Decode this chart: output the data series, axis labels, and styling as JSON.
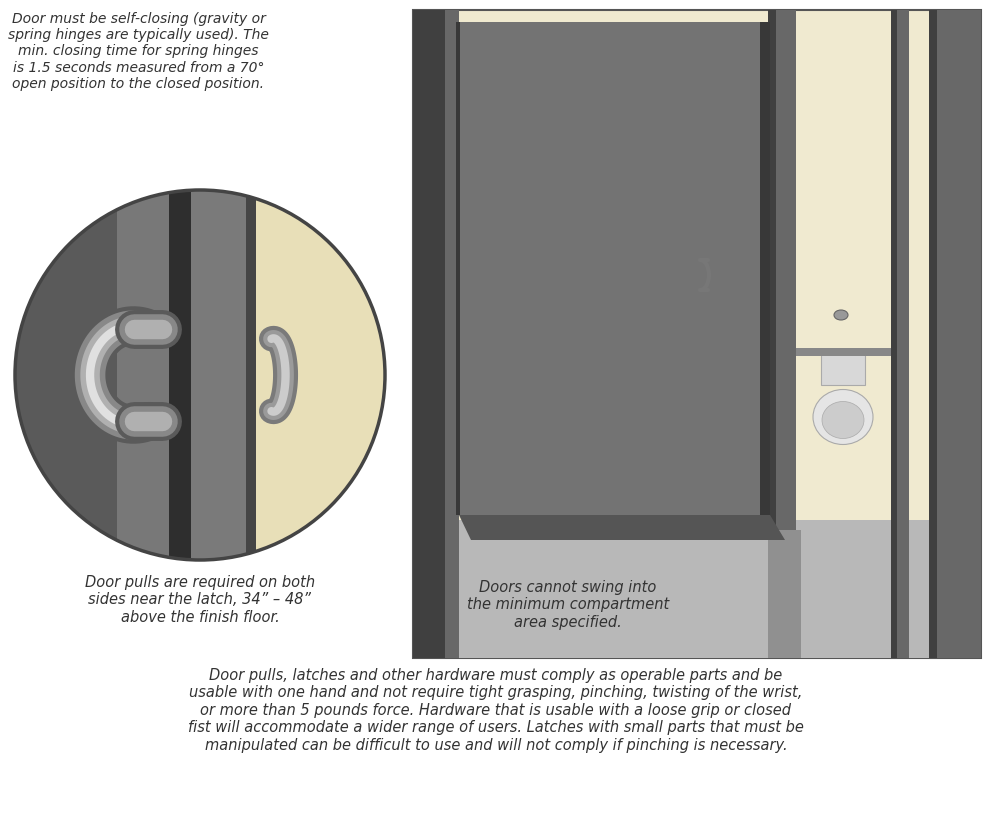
{
  "bg_color": "#ffffff",
  "diagram_box_color": "#f0ead0",
  "diagram_box_outline": "#555555",
  "floor_color": "#b8b8b8",
  "wall_color": "#686868",
  "wall_dark": "#404040",
  "wall_mid": "#888888",
  "door_color": "#737373",
  "door_edge_dark": "#383838",
  "door_edge_light": "#909090",
  "text_color": "#333333",
  "circle_bg_left": "#787878",
  "circle_bg_right": "#e8dfb8",
  "circle_outline": "#444444",
  "handle_outer": "#888888",
  "handle_inner": "#bbbbbb",
  "handle_highlight": "#e0e0e0",
  "top_note": "Door must be self-closing (gravity or\nspring hinges are typically used). The\nmin. closing time for spring hinges\nis 1.5 seconds measured from a 70°\nopen position to the closed position.",
  "bottom_left_note": "Door pulls are required on both\nsides near the latch, 34” – 48”\nabove the finish floor.",
  "compartment_note": "Doors cannot swing into\nthe minimum compartment\narea specified.",
  "bottom_paragraph": "Door pulls, latches and other hardware must comply as operable parts and be\nusable with one hand and not require tight grasping, pinching, twisting of the wrist,\nor more than 5 pounds force. Hardware that is usable with a loose grip or closed\nfist will accommodate a wider range of users. Latches with small parts that must be\nmanipulated can be difficult to use and will not comply if pinching is necessary."
}
